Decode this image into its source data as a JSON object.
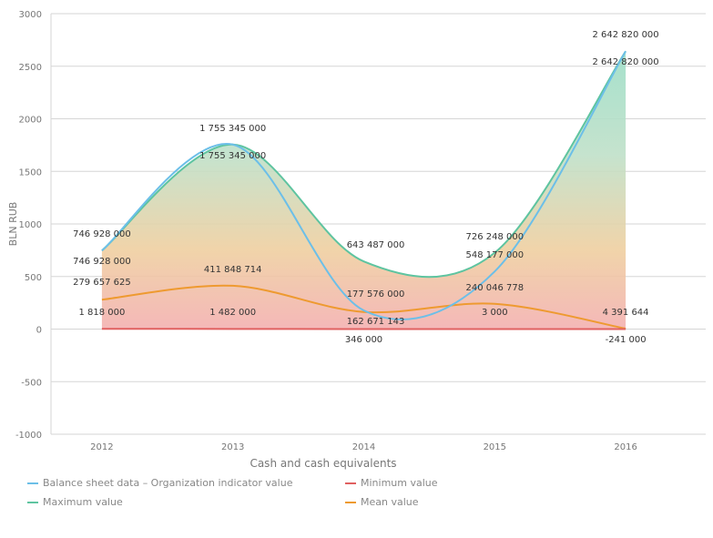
{
  "chart_data": {
    "type": "area",
    "xlabel": "Cash and cash equivalents",
    "ylabel": "BLN RUB",
    "categories": [
      "2012",
      "2013",
      "2014",
      "2015",
      "2016"
    ],
    "ylim": [
      -1000,
      3000
    ],
    "yticks": [
      "-1000",
      "-500",
      "0",
      "500",
      "1000",
      "1500",
      "2000",
      "2500",
      "3000"
    ],
    "grid": true,
    "legend_position": "bottom",
    "series": [
      {
        "name": "Balance sheet data – Organization indicator value",
        "color": "#6cbfe8",
        "values": [
          746.928,
          1755.345,
          177.576,
          548.177,
          2642.82
        ],
        "labels": [
          "746 928 000",
          "1 755 345 000",
          "177 576 000",
          "548 177 000",
          "2 642 820 000"
        ]
      },
      {
        "name": "Maximum value",
        "color": "#5ec4a0",
        "values": [
          746.928,
          1755.345,
          643.487,
          726.248,
          2642.82
        ],
        "labels": [
          "746 928 000",
          "1 755 345 000",
          "643 487 000",
          "726 248 000",
          "2 642 820 000"
        ]
      },
      {
        "name": "Minimum value",
        "color": "#e06060",
        "values": [
          1.818,
          1.482,
          0.346,
          0.003,
          -0.241
        ],
        "labels": [
          "1 818 000",
          "1 482 000",
          "346 000",
          "3 000",
          "-241 000"
        ]
      },
      {
        "name": "Mean value",
        "color": "#ee9a30",
        "values": [
          279.657625,
          411.848714,
          162.671143,
          240.046778,
          4.391644
        ],
        "labels": [
          "279 657 625",
          "411 848 714",
          "162 671 143",
          "240 046 778",
          "4 391 644"
        ]
      }
    ]
  }
}
